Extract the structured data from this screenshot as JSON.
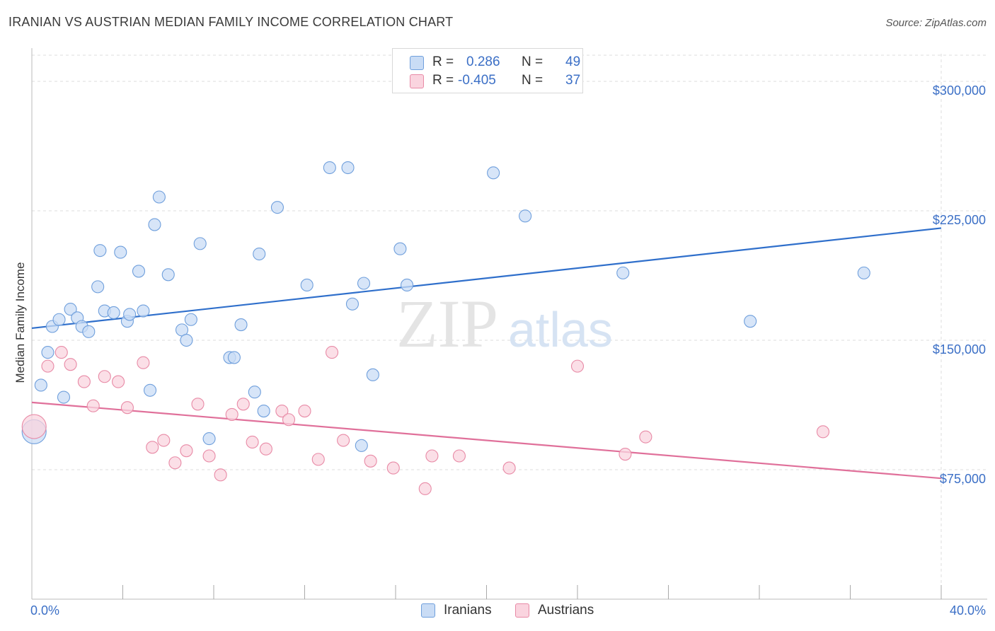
{
  "header": {
    "title": "IRANIAN VS AUSTRIAN MEDIAN FAMILY INCOME CORRELATION CHART",
    "source": "Source: ZipAtlas.com"
  },
  "watermark": {
    "zip": "ZIP",
    "atlas": "atlas"
  },
  "legend": {
    "rows": [
      {
        "r_key": "R =",
        "r_value": "0.286",
        "n_key": "N =",
        "n_value": "49",
        "color": "#a9c8f0"
      },
      {
        "r_key": "R =",
        "r_value": "-0.405",
        "n_key": "N =",
        "n_value": "37",
        "color": "#f6b8c9"
      }
    ]
  },
  "colors": {
    "blue_fill": "#c9dcf5",
    "blue_stroke": "#6f9fdc",
    "blue_line": "#2f6fcb",
    "pink_fill": "#fad4df",
    "pink_stroke": "#e88aa6",
    "pink_line": "#e0709a",
    "grid": "#dedede",
    "tick_label": "#3b6fc6"
  },
  "chart_data": {
    "type": "scatter",
    "title": "IRANIAN VS AUSTRIAN MEDIAN FAMILY INCOME CORRELATION CHART",
    "xlabel": "",
    "ylabel": "Median Family Income",
    "xlim": [
      0,
      40
    ],
    "ylim": [
      0,
      316000
    ],
    "x_tick_labels": [
      "0.0%",
      "40.0%"
    ],
    "y_ticks": [
      75000,
      150000,
      225000,
      300000
    ],
    "y_tick_labels": [
      "$75,000",
      "$150,000",
      "$225,000",
      "$300,000"
    ],
    "grid": true,
    "legend_position": "top-center",
    "series": [
      {
        "name": "Iranians",
        "trend": {
          "x": [
            0,
            40
          ],
          "y": [
            157000,
            215000
          ]
        },
        "points": [
          {
            "x": 0.1,
            "y": 97000,
            "big": true
          },
          {
            "x": 0.4,
            "y": 124000
          },
          {
            "x": 0.7,
            "y": 143000
          },
          {
            "x": 0.9,
            "y": 158000
          },
          {
            "x": 1.2,
            "y": 162000
          },
          {
            "x": 1.4,
            "y": 117000
          },
          {
            "x": 1.7,
            "y": 168000
          },
          {
            "x": 2.0,
            "y": 163000
          },
          {
            "x": 2.2,
            "y": 158000
          },
          {
            "x": 2.5,
            "y": 155000
          },
          {
            "x": 2.9,
            "y": 181000
          },
          {
            "x": 3.0,
            "y": 202000
          },
          {
            "x": 3.2,
            "y": 167000
          },
          {
            "x": 3.6,
            "y": 166000
          },
          {
            "x": 3.9,
            "y": 201000
          },
          {
            "x": 4.2,
            "y": 161000
          },
          {
            "x": 4.3,
            "y": 165000
          },
          {
            "x": 4.7,
            "y": 190000
          },
          {
            "x": 4.9,
            "y": 167000
          },
          {
            "x": 5.2,
            "y": 121000
          },
          {
            "x": 5.4,
            "y": 217000
          },
          {
            "x": 5.6,
            "y": 233000
          },
          {
            "x": 6.0,
            "y": 188000
          },
          {
            "x": 6.6,
            "y": 156000
          },
          {
            "x": 6.8,
            "y": 150000
          },
          {
            "x": 7.0,
            "y": 162000
          },
          {
            "x": 7.4,
            "y": 206000
          },
          {
            "x": 7.8,
            "y": 93000
          },
          {
            "x": 8.7,
            "y": 140000
          },
          {
            "x": 8.9,
            "y": 140000
          },
          {
            "x": 9.2,
            "y": 159000
          },
          {
            "x": 9.8,
            "y": 120000
          },
          {
            "x": 10.0,
            "y": 200000
          },
          {
            "x": 10.2,
            "y": 109000
          },
          {
            "x": 10.8,
            "y": 227000
          },
          {
            "x": 12.1,
            "y": 182000
          },
          {
            "x": 13.1,
            "y": 250000
          },
          {
            "x": 13.9,
            "y": 250000
          },
          {
            "x": 14.1,
            "y": 171000
          },
          {
            "x": 14.5,
            "y": 89000
          },
          {
            "x": 14.6,
            "y": 183000
          },
          {
            "x": 15.0,
            "y": 130000
          },
          {
            "x": 16.2,
            "y": 203000
          },
          {
            "x": 16.5,
            "y": 182000
          },
          {
            "x": 20.3,
            "y": 247000
          },
          {
            "x": 21.7,
            "y": 222000
          },
          {
            "x": 26.0,
            "y": 189000
          },
          {
            "x": 31.6,
            "y": 161000
          },
          {
            "x": 36.6,
            "y": 189000
          }
        ]
      },
      {
        "name": "Austrians",
        "trend": {
          "x": [
            0,
            40
          ],
          "y": [
            114000,
            70000
          ]
        },
        "points": [
          {
            "x": 0.1,
            "y": 100000,
            "big": true
          },
          {
            "x": 0.7,
            "y": 135000
          },
          {
            "x": 1.3,
            "y": 143000
          },
          {
            "x": 1.7,
            "y": 136000
          },
          {
            "x": 2.3,
            "y": 126000
          },
          {
            "x": 2.7,
            "y": 112000
          },
          {
            "x": 3.2,
            "y": 129000
          },
          {
            "x": 3.8,
            "y": 126000
          },
          {
            "x": 4.2,
            "y": 111000
          },
          {
            "x": 4.9,
            "y": 137000
          },
          {
            "x": 5.3,
            "y": 88000
          },
          {
            "x": 5.8,
            "y": 92000
          },
          {
            "x": 6.3,
            "y": 79000
          },
          {
            "x": 6.8,
            "y": 86000
          },
          {
            "x": 7.3,
            "y": 113000
          },
          {
            "x": 7.8,
            "y": 83000
          },
          {
            "x": 8.3,
            "y": 72000
          },
          {
            "x": 8.8,
            "y": 107000
          },
          {
            "x": 9.3,
            "y": 113000
          },
          {
            "x": 9.7,
            "y": 91000
          },
          {
            "x": 10.3,
            "y": 87000
          },
          {
            "x": 11.0,
            "y": 109000
          },
          {
            "x": 11.3,
            "y": 104000
          },
          {
            "x": 12.0,
            "y": 109000
          },
          {
            "x": 12.6,
            "y": 81000
          },
          {
            "x": 13.2,
            "y": 143000
          },
          {
            "x": 13.7,
            "y": 92000
          },
          {
            "x": 14.9,
            "y": 80000
          },
          {
            "x": 15.9,
            "y": 76000
          },
          {
            "x": 17.3,
            "y": 64000
          },
          {
            "x": 17.6,
            "y": 83000
          },
          {
            "x": 18.8,
            "y": 83000
          },
          {
            "x": 21.0,
            "y": 76000
          },
          {
            "x": 24.0,
            "y": 135000
          },
          {
            "x": 26.1,
            "y": 84000
          },
          {
            "x": 27.0,
            "y": 94000
          },
          {
            "x": 34.8,
            "y": 97000
          }
        ]
      }
    ]
  }
}
